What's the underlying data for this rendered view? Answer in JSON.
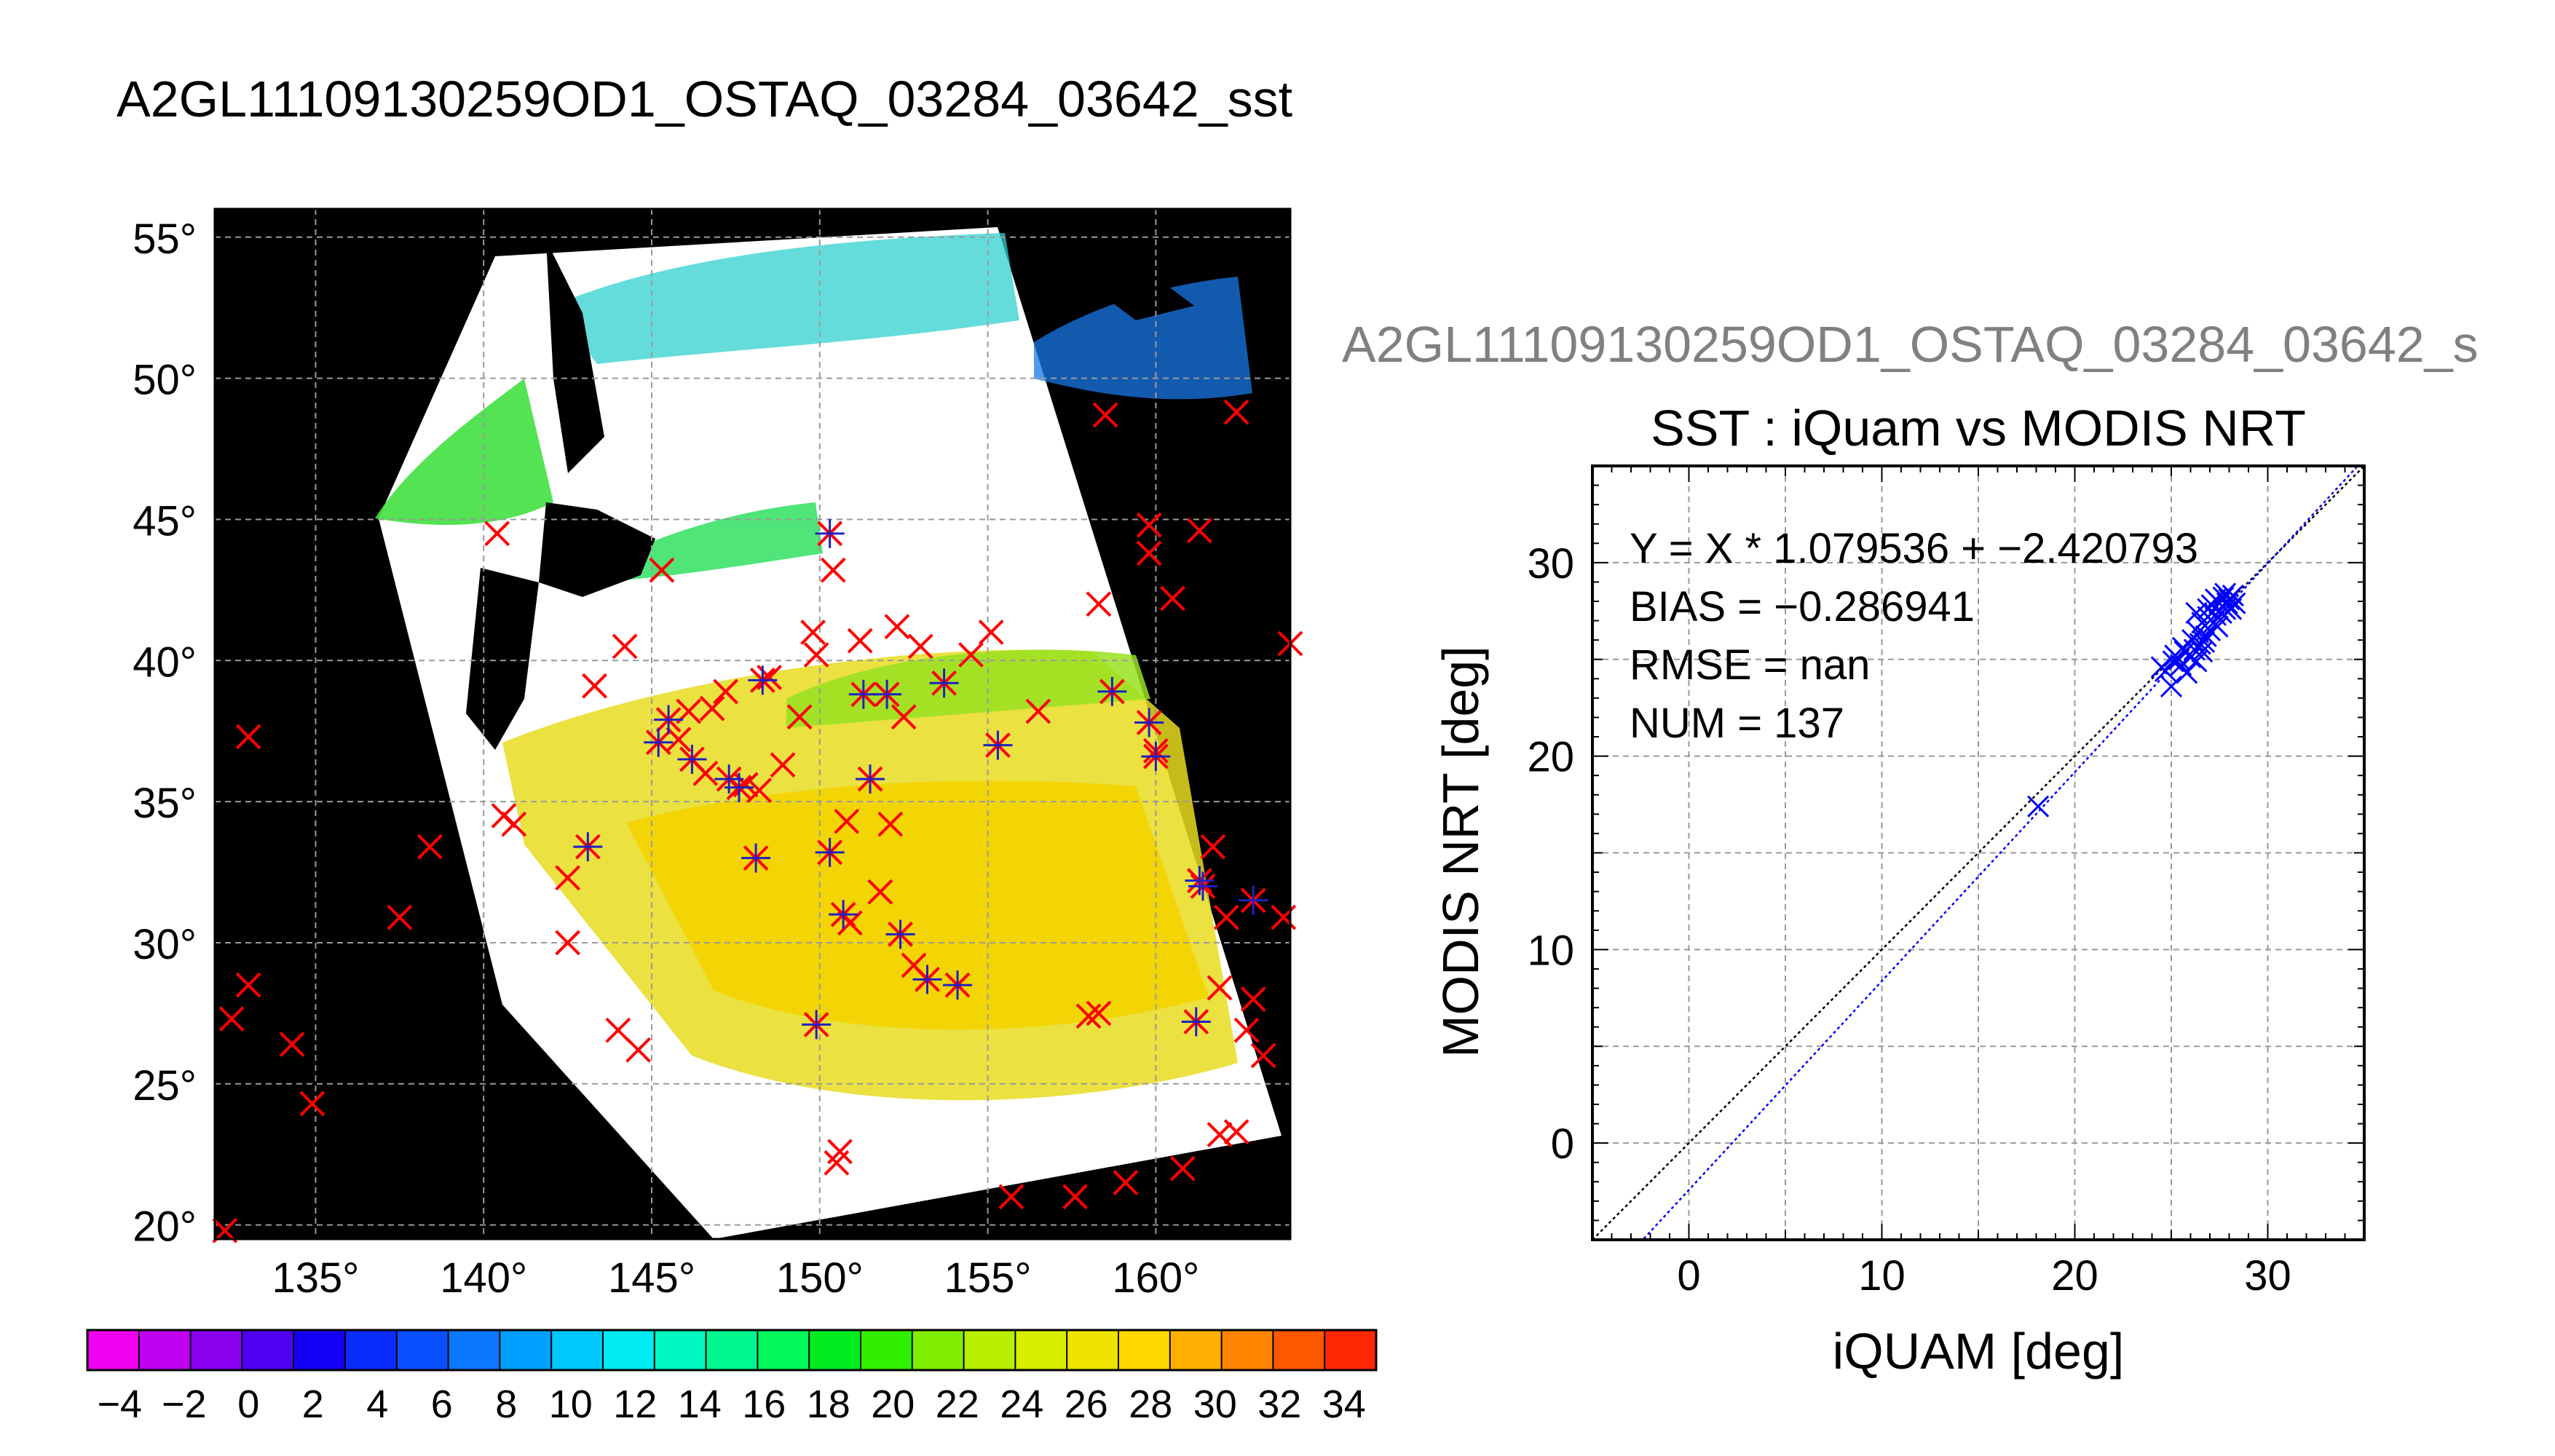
{
  "page_title": "A2GL11109130259OD1_OSTAQ_03284_03642_sst",
  "chart_data": [
    {
      "type": "map",
      "name": "sst-swath-map",
      "lon_range": [
        132,
        164
      ],
      "lat_range": [
        19.5,
        56
      ],
      "lon_ticks": [
        135,
        140,
        145,
        150,
        155,
        160
      ],
      "lat_ticks": [
        20,
        25,
        30,
        35,
        40,
        45,
        50,
        55
      ],
      "tick_suffix": "°",
      "grid": true,
      "background_color": "#000000",
      "cloud_color": "#ffffff",
      "marker_colors": {
        "iquam_point": "#ff0000",
        "matchup": "#2020c0"
      },
      "iquam_points": [
        [
          132.3,
          19.8
        ],
        [
          132.5,
          27.3
        ],
        [
          133,
          28.5
        ],
        [
          133,
          37.3
        ],
        [
          134.3,
          26.4
        ],
        [
          134.9,
          24.3
        ],
        [
          137.5,
          30.9
        ],
        [
          138.4,
          33.4
        ],
        [
          140.4,
          44.5
        ],
        [
          140.6,
          34.5
        ],
        [
          140.9,
          34.2
        ],
        [
          142.5,
          30.0
        ],
        [
          142.5,
          32.3
        ],
        [
          143.1,
          33.4
        ],
        [
          143.3,
          39.1
        ],
        [
          144,
          26.9
        ],
        [
          144.2,
          40.5
        ],
        [
          144.6,
          26.2
        ],
        [
          145.2,
          37.1
        ],
        [
          145.3,
          43.2
        ],
        [
          145.5,
          37.9
        ],
        [
          145.8,
          37.2
        ],
        [
          146.1,
          38.2
        ],
        [
          146.2,
          36.5
        ],
        [
          146.6,
          36.0
        ],
        [
          146.8,
          38.3
        ],
        [
          147.2,
          38.9
        ],
        [
          147.3,
          35.8
        ],
        [
          147.6,
          35.5
        ],
        [
          147.8,
          35.6
        ],
        [
          148.2,
          35.4
        ],
        [
          148.1,
          33.0
        ],
        [
          148.3,
          39.3
        ],
        [
          148.5,
          39.4
        ],
        [
          148.9,
          36.3
        ],
        [
          149.4,
          38.0
        ],
        [
          149.8,
          41.0
        ],
        [
          149.9,
          40.2
        ],
        [
          149.9,
          27.1
        ],
        [
          150.3,
          44.5
        ],
        [
          150.3,
          33.2
        ],
        [
          150.4,
          43.2
        ],
        [
          150.5,
          22.2
        ],
        [
          150.6,
          22.6
        ],
        [
          150.7,
          31.0
        ],
        [
          150.8,
          34.3
        ],
        [
          150.9,
          30.7
        ],
        [
          151.2,
          40.7
        ],
        [
          151.3,
          38.8
        ],
        [
          151.5,
          35.8
        ],
        [
          151.8,
          31.8
        ],
        [
          152,
          38.8
        ],
        [
          152.1,
          34.2
        ],
        [
          152.3,
          41.2
        ],
        [
          152.4,
          30.3
        ],
        [
          152.5,
          38.0
        ],
        [
          152.8,
          29.2
        ],
        [
          153,
          40.5
        ],
        [
          153.2,
          28.7
        ],
        [
          153.7,
          39.2
        ],
        [
          154.1,
          28.5
        ],
        [
          154.5,
          40.2
        ],
        [
          155.1,
          41.0
        ],
        [
          155.3,
          37.0
        ],
        [
          155.7,
          21.0
        ],
        [
          156.5,
          38.2
        ],
        [
          157.6,
          21.0
        ],
        [
          158,
          27.4
        ],
        [
          158.3,
          27.5
        ],
        [
          158.3,
          42.0
        ],
        [
          158.5,
          48.7
        ],
        [
          158.7,
          38.9
        ],
        [
          159.1,
          21.5
        ],
        [
          159.8,
          37.8
        ],
        [
          159.8,
          44.8
        ],
        [
          159.8,
          43.8
        ],
        [
          160,
          36.6
        ],
        [
          160,
          36.8
        ],
        [
          160.5,
          42.2
        ],
        [
          160.8,
          22.0
        ],
        [
          161.2,
          27.2
        ],
        [
          161.3,
          44.6
        ],
        [
          161.3,
          32.2
        ],
        [
          161.4,
          32.0
        ],
        [
          161.7,
          33.4
        ],
        [
          161.9,
          23.2
        ],
        [
          161.9,
          28.4
        ],
        [
          162.1,
          30.9
        ],
        [
          162.4,
          23.3
        ],
        [
          162.4,
          48.8
        ],
        [
          162.7,
          26.9
        ],
        [
          162.9,
          31.5
        ],
        [
          162.9,
          28.0
        ],
        [
          163.2,
          26.0
        ],
        [
          163.8,
          30.9
        ],
        [
          164,
          40.6
        ]
      ],
      "matchup_points": [
        [
          143.1,
          33.4
        ],
        [
          145.2,
          37.1
        ],
        [
          145.5,
          37.9
        ],
        [
          146.2,
          36.5
        ],
        [
          147.3,
          35.8
        ],
        [
          147.6,
          35.5
        ],
        [
          148.1,
          33.0
        ],
        [
          148.3,
          39.3
        ],
        [
          149.9,
          27.1
        ],
        [
          150.3,
          44.5
        ],
        [
          150.3,
          33.2
        ],
        [
          150.7,
          31.0
        ],
        [
          151.3,
          38.8
        ],
        [
          151.5,
          35.8
        ],
        [
          152,
          38.8
        ],
        [
          152.4,
          30.3
        ],
        [
          153.2,
          28.7
        ],
        [
          153.7,
          39.2
        ],
        [
          154.1,
          28.5
        ],
        [
          155.3,
          37.0
        ],
        [
          158.7,
          38.9
        ],
        [
          159.8,
          37.8
        ],
        [
          160,
          36.6
        ],
        [
          161.2,
          27.2
        ],
        [
          161.3,
          32.2
        ],
        [
          161.4,
          32.0
        ],
        [
          162.9,
          31.5
        ]
      ]
    },
    {
      "type": "colorbar",
      "name": "sst-colorbar",
      "range": [
        -5,
        35
      ],
      "tick_labels": [
        "−4",
        "−2",
        "0",
        "2",
        "4",
        "6",
        "8",
        "10",
        "12",
        "14",
        "16",
        "18",
        "20",
        "22",
        "24",
        "26",
        "28",
        "30",
        "32",
        "34"
      ],
      "tick_values": [
        -4,
        -2,
        0,
        2,
        4,
        6,
        8,
        10,
        12,
        14,
        16,
        18,
        20,
        22,
        24,
        26,
        28,
        30,
        32,
        34
      ],
      "colors": [
        "#f000f0",
        "#c000f0",
        "#8a00ee",
        "#5000f0",
        "#1400f6",
        "#0a2cff",
        "#0a50ff",
        "#0a78ff",
        "#00a0ff",
        "#00c8ff",
        "#00ecf0",
        "#00f8c0",
        "#00f890",
        "#00f858",
        "#00ee20",
        "#30f000",
        "#80ee00",
        "#b8ee00",
        "#d8ee00",
        "#eee400",
        "#ffd800",
        "#ffb000",
        "#ff8400",
        "#ff5800",
        "#ff2800"
      ]
    },
    {
      "type": "scatter",
      "name": "sst-scatter",
      "suptitle": "A2GL11109130259OD1_OSTAQ_03284_03642_s",
      "title": "SST : iQuam vs MODIS NRT",
      "xlabel": "iQUAM [deg]",
      "ylabel": "MODIS NRT [deg]",
      "xlim": [
        -5,
        35
      ],
      "ylim": [
        -5,
        35
      ],
      "x_ticks": [
        0,
        10,
        20,
        30
      ],
      "y_ticks": [
        0,
        10,
        20,
        30
      ],
      "grid": true,
      "stats": [
        "Y = X * 1.079536 + −2.420793",
        "BIAS = −0.286941",
        "RMSE = nan",
        "NUM = 137"
      ],
      "fit": {
        "slope": 1.079536,
        "intercept": -2.420793
      },
      "marker_color": "#0000ff",
      "points": [
        [
          18.1,
          17.4
        ],
        [
          24.5,
          24.6
        ],
        [
          24.7,
          24.4
        ],
        [
          25,
          23.6
        ],
        [
          25.1,
          24.9
        ],
        [
          25.2,
          25.2
        ],
        [
          25.4,
          25.0
        ],
        [
          25.5,
          24.7
        ],
        [
          25.7,
          25.4
        ],
        [
          25.8,
          24.3
        ],
        [
          26,
          25.1
        ],
        [
          26.1,
          26.0
        ],
        [
          26.2,
          25.5
        ],
        [
          26.3,
          24.9
        ],
        [
          26.4,
          26.4
        ],
        [
          26.5,
          25.8
        ],
        [
          26.6,
          26.9
        ],
        [
          26.7,
          25.9
        ],
        [
          26.8,
          26.2
        ],
        [
          26.9,
          27.2
        ],
        [
          27,
          26.5
        ],
        [
          27.1,
          27.8
        ],
        [
          27.2,
          26.9
        ],
        [
          27.3,
          27.3
        ],
        [
          27.4,
          26.7
        ],
        [
          27.5,
          27.9
        ],
        [
          27.6,
          27.4
        ],
        [
          27.7,
          28.2
        ],
        [
          27.8,
          27.6
        ],
        [
          27.9,
          27.9
        ],
        [
          28,
          28.1
        ],
        [
          28.1,
          27.6
        ],
        [
          28.2,
          28.3
        ],
        [
          28.3,
          27.9
        ],
        [
          26.3,
          27.4
        ],
        [
          26.9,
          27.6
        ],
        [
          27.3,
          28.1
        ],
        [
          27.8,
          28.4
        ],
        [
          25.6,
          25.6
        ],
        [
          26.6,
          25.4
        ]
      ]
    }
  ]
}
